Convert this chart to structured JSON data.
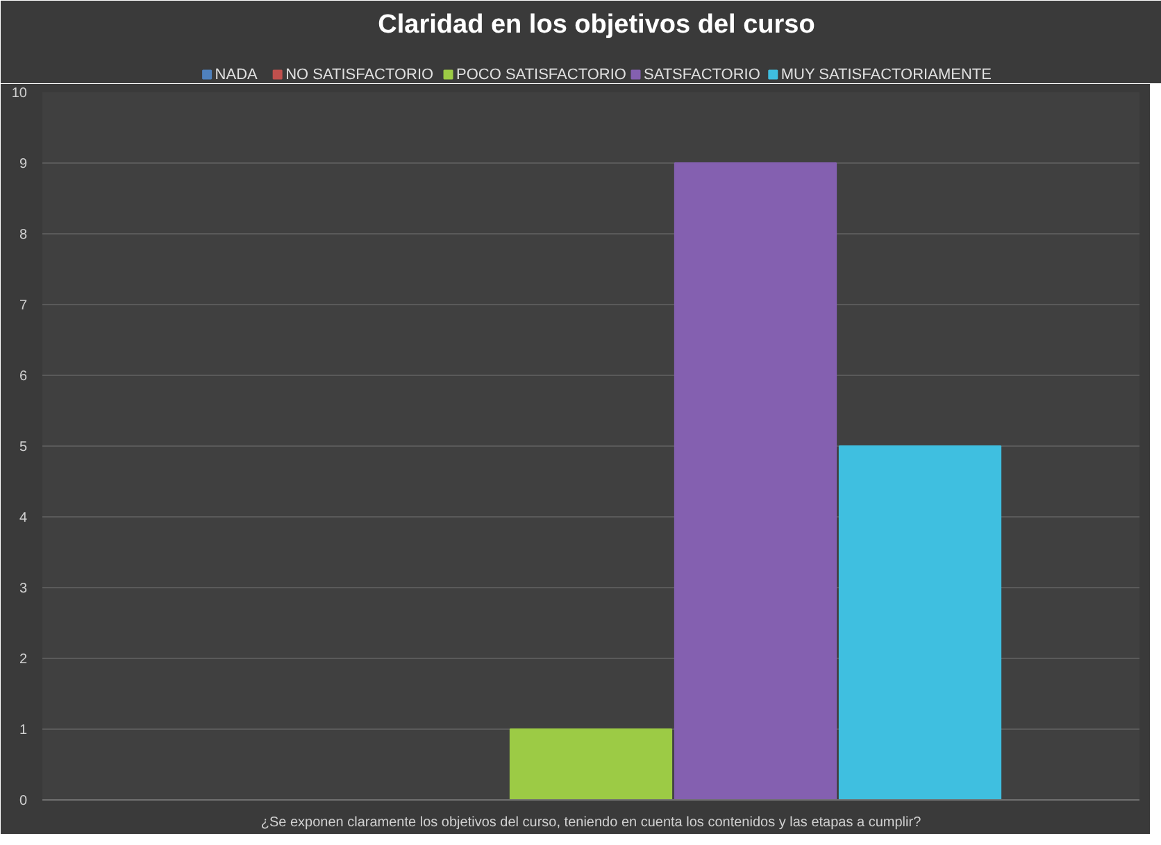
{
  "chart_data": {
    "type": "bar",
    "title": "Claridad en los objetivos del curso",
    "categories": [
      "¿Se exponen claramente los objetivos del curso, teniendo en cuenta los contenidos y las etapas a cumplir?"
    ],
    "series": [
      {
        "name": "NADA",
        "color": "#4f81bd",
        "values": [
          0
        ]
      },
      {
        "name": "NO SATISFACTORIO",
        "color": "#c0504d",
        "values": [
          0
        ]
      },
      {
        "name": "POCO SATISFACTORIO",
        "color": "#9ccb45",
        "values": [
          1
        ]
      },
      {
        "name": "SATSFACTORIO",
        "color": "#8460b0",
        "values": [
          9
        ]
      },
      {
        "name": "MUY SATISFACTORIAMENTE",
        "color": "#3fbfe0",
        "values": [
          5
        ]
      }
    ],
    "ylim": [
      0,
      10
    ],
    "yticks": [
      0,
      1,
      2,
      3,
      4,
      5,
      6,
      7,
      8,
      9,
      10
    ],
    "grid": "y",
    "legend": "top"
  }
}
